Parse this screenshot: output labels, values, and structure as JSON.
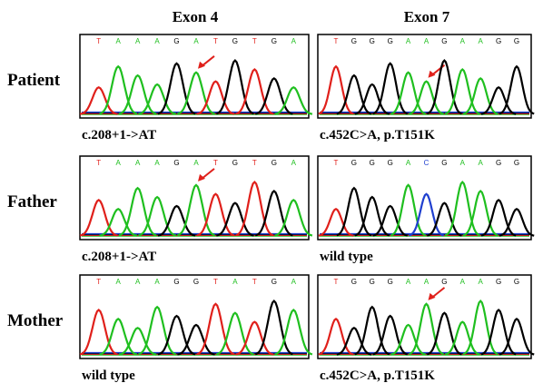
{
  "columns": [
    "Exon 4",
    "Exon 7"
  ],
  "rows": [
    {
      "label": "Patient",
      "panels": [
        {
          "bases": [
            "T",
            "A",
            "A",
            "A",
            "G",
            "A",
            "T",
            "G",
            "T",
            "G",
            "A"
          ],
          "caption": "c.208+1->AT"
        },
        {
          "bases": [
            "T",
            "G",
            "G",
            "G",
            "A",
            "A",
            "G",
            "A",
            "A",
            "G",
            "G"
          ],
          "caption": "c.452C>A, p.T151K"
        }
      ]
    },
    {
      "label": "Father",
      "panels": [
        {
          "bases": [
            "T",
            "A",
            "A",
            "A",
            "G",
            "A",
            "T",
            "G",
            "T",
            "G",
            "A"
          ],
          "caption": "c.208+1->AT"
        },
        {
          "bases": [
            "T",
            "G",
            "G",
            "G",
            "A",
            "C",
            "G",
            "A",
            "A",
            "G",
            "G"
          ],
          "caption": "wild type"
        }
      ]
    },
    {
      "label": "Mother",
      "panels": [
        {
          "bases": [
            "T",
            "A",
            "A",
            "A",
            "G",
            "G",
            "T",
            "A",
            "T",
            "G",
            "A"
          ],
          "caption": "wild type"
        },
        {
          "bases": [
            "T",
            "G",
            "G",
            "G",
            "A",
            "A",
            "G",
            "A",
            "A",
            "G",
            "G"
          ],
          "caption": "c.452C>A, p.T151K"
        }
      ]
    }
  ]
}
